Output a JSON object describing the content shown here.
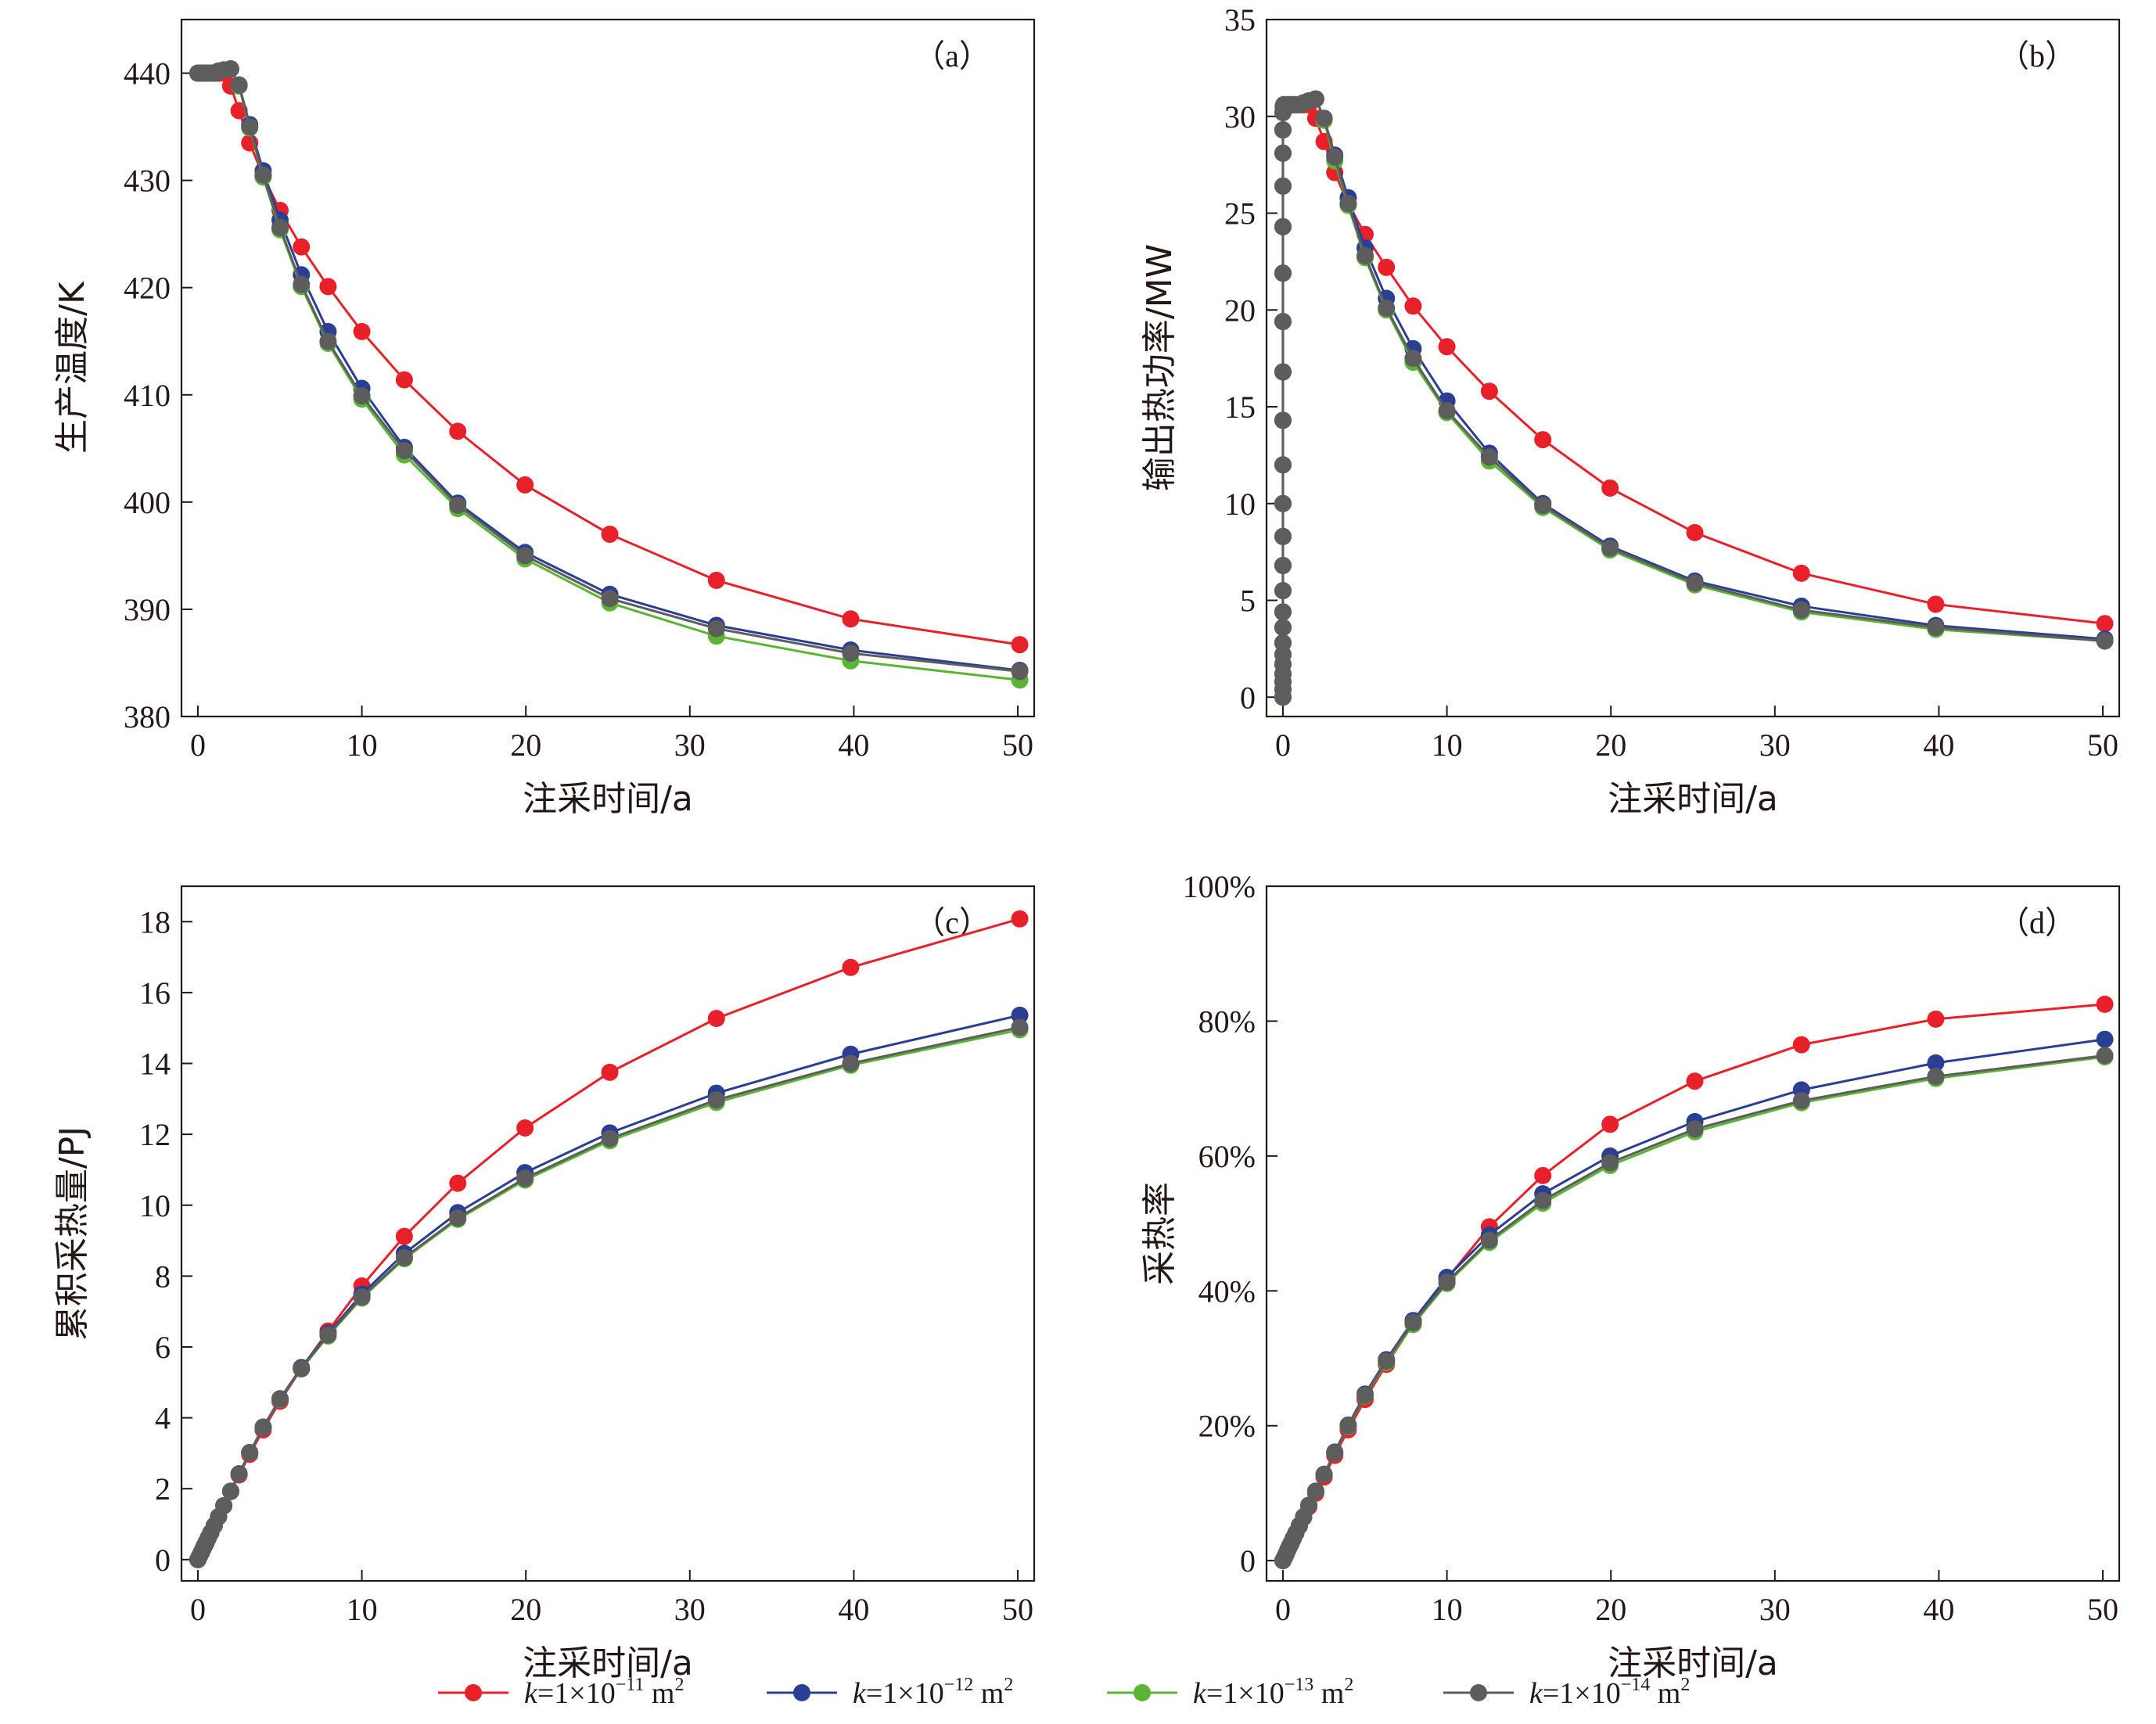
{
  "legend": [
    {
      "var": "k",
      "pre": "=1×10",
      "exp": "−11",
      "post": " m",
      "unit_exp": "2",
      "color": "#e8202a"
    },
    {
      "var": "k",
      "pre": "=1×10",
      "exp": "−12",
      "post": " m",
      "unit_exp": "2",
      "color": "#2a3f94"
    },
    {
      "var": "k",
      "pre": "=1×10",
      "exp": "−13",
      "post": " m",
      "unit_exp": "2",
      "color": "#5ab535"
    },
    {
      "var": "k",
      "pre": "=1×10",
      "exp": "−14",
      "post": " m",
      "unit_exp": "2",
      "color": "#5d5d5d"
    }
  ],
  "chart_data": [
    {
      "id": "a",
      "type": "line",
      "panel_label": "（a）",
      "xlabel": "注采时间/a",
      "ylabel": "生产温度/K",
      "xlim": [
        -1,
        51
      ],
      "ylim": [
        380,
        445
      ],
      "xticks": [
        0,
        10,
        20,
        30,
        40,
        50
      ],
      "yticks": [
        380,
        390,
        400,
        410,
        420,
        430,
        440
      ],
      "ytick_labels": [
        "380",
        "390",
        "400",
        "410",
        "420",
        "430",
        "440"
      ],
      "x": [
        0,
        0.1,
        0.2,
        0.3,
        0.4,
        0.5,
        0.63,
        0.79,
        1.0,
        1.26,
        1.58,
        2.0,
        2.51,
        3.16,
        3.98,
        5.01,
        6.31,
        7.94,
        10.0,
        12.59,
        15.85,
        19.95,
        25.12,
        31.62,
        39.81,
        50.12
      ],
      "series": [
        {
          "name": "k=1×10⁻¹¹ m²",
          "color": "#e8202a",
          "values": [
            440,
            440,
            440,
            440,
            440,
            440,
            440,
            440,
            440,
            440,
            440,
            438.8,
            436.5,
            433.5,
            430.4,
            427.2,
            423.8,
            420.1,
            415.9,
            411.4,
            406.6,
            401.6,
            397.0,
            392.7,
            389.1,
            386.7
          ]
        },
        {
          "name": "k=1×10⁻¹² m²",
          "color": "#2a3f94",
          "values": [
            440,
            440,
            440,
            440,
            440,
            440,
            440,
            440,
            440,
            440.2,
            440.3,
            440.4,
            438.9,
            435.2,
            430.9,
            426.3,
            421.2,
            415.9,
            410.6,
            405.1,
            399.9,
            395.3,
            391.4,
            388.5,
            386.2,
            384.3
          ]
        },
        {
          "name": "k=1×10⁻¹³ m²",
          "color": "#5ab535",
          "values": [
            440,
            440,
            440,
            440,
            440,
            440,
            440,
            440,
            440,
            440.2,
            440.3,
            440.4,
            438.8,
            434.9,
            430.3,
            425.4,
            420.1,
            414.8,
            409.6,
            404.4,
            399.4,
            394.7,
            390.6,
            387.5,
            385.2,
            383.4
          ]
        },
        {
          "name": "k=1×10⁻¹⁴ m²",
          "color": "#5d5d5d",
          "values": [
            440,
            440,
            440,
            440,
            440,
            440,
            440,
            440,
            440,
            440.2,
            440.3,
            440.4,
            438.9,
            435.0,
            430.5,
            425.6,
            420.3,
            415.0,
            409.9,
            404.8,
            399.7,
            395.0,
            391.0,
            388.2,
            385.9,
            384.2
          ]
        }
      ]
    },
    {
      "id": "b",
      "type": "line",
      "panel_label": "（b）",
      "xlabel": "注采时间/a",
      "ylabel": "输出热功率/MW",
      "xlim": [
        -1,
        51
      ],
      "ylim": [
        -1,
        35
      ],
      "xticks": [
        0,
        10,
        20,
        30,
        40,
        50
      ],
      "yticks": [
        0,
        5,
        10,
        15,
        20,
        25,
        30,
        35
      ],
      "ytick_labels": [
        "0",
        "5",
        "10",
        "15",
        "20",
        "25",
        "30",
        "35"
      ],
      "x": [
        0,
        0,
        0,
        0,
        0,
        0,
        0,
        0,
        0,
        0,
        0,
        0,
        0,
        0,
        0,
        0,
        0,
        0,
        0,
        0,
        0,
        0,
        0,
        0.02,
        0.05,
        0.1,
        0.2,
        0.3,
        0.4,
        0.5,
        0.63,
        0.79,
        1.0,
        1.26,
        1.58,
        2.0,
        2.51,
        3.16,
        3.98,
        5.01,
        6.31,
        7.94,
        10.0,
        12.59,
        15.85,
        19.95,
        25.12,
        31.62,
        39.81,
        50.12
      ],
      "series": [
        {
          "name": "k=1×10⁻¹¹ m²",
          "color": "#e8202a",
          "values": [
            0,
            0.4,
            0.8,
            1.2,
            1.7,
            2.2,
            2.8,
            3.6,
            4.4,
            5.5,
            6.8,
            8.3,
            10.0,
            12.0,
            14.3,
            16.8,
            19.4,
            21.9,
            24.3,
            26.4,
            28.1,
            29.3,
            30.2,
            30.5,
            30.6,
            30.6,
            30.6,
            30.6,
            30.6,
            30.6,
            30.6,
            30.6,
            30.6,
            30.6,
            30.6,
            29.9,
            28.7,
            27.1,
            25.5,
            23.9,
            22.2,
            20.2,
            18.1,
            15.8,
            13.3,
            10.8,
            8.5,
            6.4,
            4.8,
            3.8
          ]
        },
        {
          "name": "k=1×10⁻¹² m²",
          "color": "#2a3f94",
          "values": [
            0,
            0.4,
            0.8,
            1.2,
            1.7,
            2.2,
            2.8,
            3.6,
            4.4,
            5.5,
            6.8,
            8.3,
            10.0,
            12.0,
            14.3,
            16.8,
            19.4,
            21.9,
            24.3,
            26.4,
            28.1,
            29.3,
            30.2,
            30.5,
            30.6,
            30.6,
            30.6,
            30.6,
            30.6,
            30.6,
            30.6,
            30.6,
            30.6,
            30.7,
            30.8,
            30.9,
            29.9,
            28.0,
            25.8,
            23.2,
            20.6,
            18.0,
            15.3,
            12.6,
            10.0,
            7.8,
            6.0,
            4.7,
            3.7,
            3.0
          ]
        },
        {
          "name": "k=1×10⁻¹³ m²",
          "color": "#5ab535",
          "values": [
            0,
            0.4,
            0.8,
            1.2,
            1.7,
            2.2,
            2.8,
            3.6,
            4.4,
            5.5,
            6.8,
            8.3,
            10.0,
            12.0,
            14.3,
            16.8,
            19.4,
            21.9,
            24.3,
            26.4,
            28.1,
            29.3,
            30.2,
            30.5,
            30.6,
            30.6,
            30.6,
            30.6,
            30.6,
            30.6,
            30.6,
            30.6,
            30.6,
            30.7,
            30.8,
            30.9,
            29.8,
            27.7,
            25.4,
            22.7,
            20.0,
            17.3,
            14.7,
            12.2,
            9.8,
            7.6,
            5.8,
            4.4,
            3.5,
            2.9
          ]
        },
        {
          "name": "k=1×10⁻¹⁴ m²",
          "color": "#5d5d5d",
          "values": [
            0,
            0.4,
            0.8,
            1.2,
            1.7,
            2.2,
            2.8,
            3.6,
            4.4,
            5.5,
            6.8,
            8.3,
            10.0,
            12.0,
            14.3,
            16.8,
            19.4,
            21.9,
            24.3,
            26.4,
            28.1,
            29.3,
            30.2,
            30.5,
            30.6,
            30.6,
            30.6,
            30.6,
            30.6,
            30.6,
            30.6,
            30.6,
            30.6,
            30.7,
            30.8,
            30.9,
            29.9,
            27.9,
            25.5,
            22.8,
            20.1,
            17.5,
            14.8,
            12.4,
            9.9,
            7.7,
            5.9,
            4.5,
            3.6,
            2.9
          ]
        }
      ]
    },
    {
      "id": "c",
      "type": "line",
      "panel_label": "（c）",
      "xlabel": "注采时间/a",
      "ylabel": "累积采热量/PJ",
      "xlim": [
        -1,
        51
      ],
      "ylim": [
        -0.6,
        19
      ],
      "xticks": [
        0,
        10,
        20,
        30,
        40,
        50
      ],
      "yticks": [
        0,
        2,
        4,
        6,
        8,
        10,
        12,
        14,
        16,
        18
      ],
      "ytick_labels": [
        "0",
        "2",
        "4",
        "6",
        "8",
        "10",
        "12",
        "14",
        "16",
        "18"
      ],
      "x": [
        0,
        0.1,
        0.2,
        0.3,
        0.4,
        0.5,
        0.63,
        0.79,
        1.0,
        1.26,
        1.58,
        2.0,
        2.51,
        3.16,
        3.98,
        5.01,
        6.31,
        7.94,
        10.0,
        12.59,
        15.85,
        19.95,
        25.12,
        31.62,
        39.81,
        50.12
      ],
      "series": [
        {
          "name": "k=1×10⁻¹¹ m²",
          "color": "#e8202a",
          "values": [
            0,
            0.1,
            0.19,
            0.29,
            0.39,
            0.48,
            0.61,
            0.76,
            0.96,
            1.21,
            1.52,
            1.92,
            2.39,
            2.97,
            3.66,
            4.47,
            5.39,
            6.45,
            7.72,
            9.12,
            10.62,
            12.18,
            13.75,
            15.27,
            16.71,
            18.08
          ]
        },
        {
          "name": "k=1×10⁻¹² m²",
          "color": "#2a3f94",
          "values": [
            0,
            0.1,
            0.19,
            0.29,
            0.39,
            0.48,
            0.61,
            0.76,
            0.96,
            1.21,
            1.52,
            1.93,
            2.42,
            3.02,
            3.74,
            4.54,
            5.42,
            6.38,
            7.49,
            8.64,
            9.79,
            10.92,
            12.04,
            13.16,
            14.26,
            15.36
          ]
        },
        {
          "name": "k=1×10⁻¹³ m²",
          "color": "#5ab535",
          "values": [
            0,
            0.1,
            0.19,
            0.29,
            0.39,
            0.48,
            0.61,
            0.76,
            0.96,
            1.21,
            1.52,
            1.93,
            2.42,
            3.02,
            3.73,
            4.52,
            5.38,
            6.31,
            7.38,
            8.49,
            9.6,
            10.71,
            11.82,
            12.9,
            13.95,
            14.95
          ]
        },
        {
          "name": "k=1×10⁻¹⁴ m²",
          "color": "#5d5d5d",
          "values": [
            0,
            0.1,
            0.19,
            0.29,
            0.39,
            0.48,
            0.61,
            0.76,
            0.96,
            1.21,
            1.52,
            1.93,
            2.42,
            3.02,
            3.73,
            4.53,
            5.39,
            6.34,
            7.41,
            8.52,
            9.64,
            10.76,
            11.88,
            12.97,
            14.0,
            15.02
          ]
        }
      ]
    },
    {
      "id": "d",
      "type": "line",
      "panel_label": "（d）",
      "xlabel": "注采时间/a",
      "ylabel": "采热率",
      "xlim": [
        -1,
        51
      ],
      "ylim": [
        -3,
        100
      ],
      "xticks": [
        0,
        10,
        20,
        30,
        40,
        50
      ],
      "yticks": [
        0,
        20,
        40,
        60,
        80,
        100
      ],
      "ytick_labels": [
        "0",
        "20%",
        "40%",
        "60%",
        "80%",
        "100%"
      ],
      "x": [
        0,
        0.1,
        0.2,
        0.3,
        0.4,
        0.5,
        0.63,
        0.79,
        1.0,
        1.26,
        1.58,
        2.0,
        2.51,
        3.16,
        3.98,
        5.01,
        6.31,
        7.94,
        10.0,
        12.59,
        15.85,
        19.95,
        25.12,
        31.62,
        39.81,
        50.12
      ],
      "series": [
        {
          "name": "k=1×10⁻¹¹ m²",
          "color": "#e8202a",
          "values": [
            0,
            0.5,
            1.0,
            1.6,
            2.1,
            2.6,
            3.3,
            4.1,
            5.1,
            6.4,
            8.0,
            10.0,
            12.4,
            15.6,
            19.4,
            23.9,
            29.1,
            35.1,
            41.8,
            49.5,
            57.1,
            64.7,
            71.1,
            76.5,
            80.3,
            82.5
          ]
        },
        {
          "name": "k=1×10⁻¹² m²",
          "color": "#2a3f94",
          "values": [
            0,
            0.5,
            1.0,
            1.6,
            2.1,
            2.6,
            3.3,
            4.1,
            5.2,
            6.5,
            8.2,
            10.3,
            12.8,
            16.1,
            20.1,
            24.7,
            29.8,
            35.6,
            42.0,
            48.3,
            54.4,
            60.0,
            65.1,
            69.8,
            73.8,
            77.3
          ]
        },
        {
          "name": "k=1×10⁻¹³ m²",
          "color": "#5ab535",
          "values": [
            0,
            0.5,
            1.0,
            1.6,
            2.1,
            2.6,
            3.3,
            4.1,
            5.2,
            6.5,
            8.2,
            10.3,
            12.8,
            16.0,
            19.9,
            24.4,
            29.4,
            35.0,
            41.1,
            47.2,
            53.0,
            58.6,
            63.6,
            67.9,
            71.5,
            74.7
          ]
        },
        {
          "name": "k=1×10⁻¹⁴ m²",
          "color": "#5d5d5d",
          "values": [
            0,
            0.5,
            1.0,
            1.6,
            2.1,
            2.6,
            3.3,
            4.1,
            5.2,
            6.5,
            8.2,
            10.3,
            12.8,
            16.0,
            20.0,
            24.5,
            29.6,
            35.3,
            41.3,
            47.5,
            53.4,
            59.0,
            64.0,
            68.2,
            71.8,
            74.9
          ]
        }
      ]
    }
  ]
}
